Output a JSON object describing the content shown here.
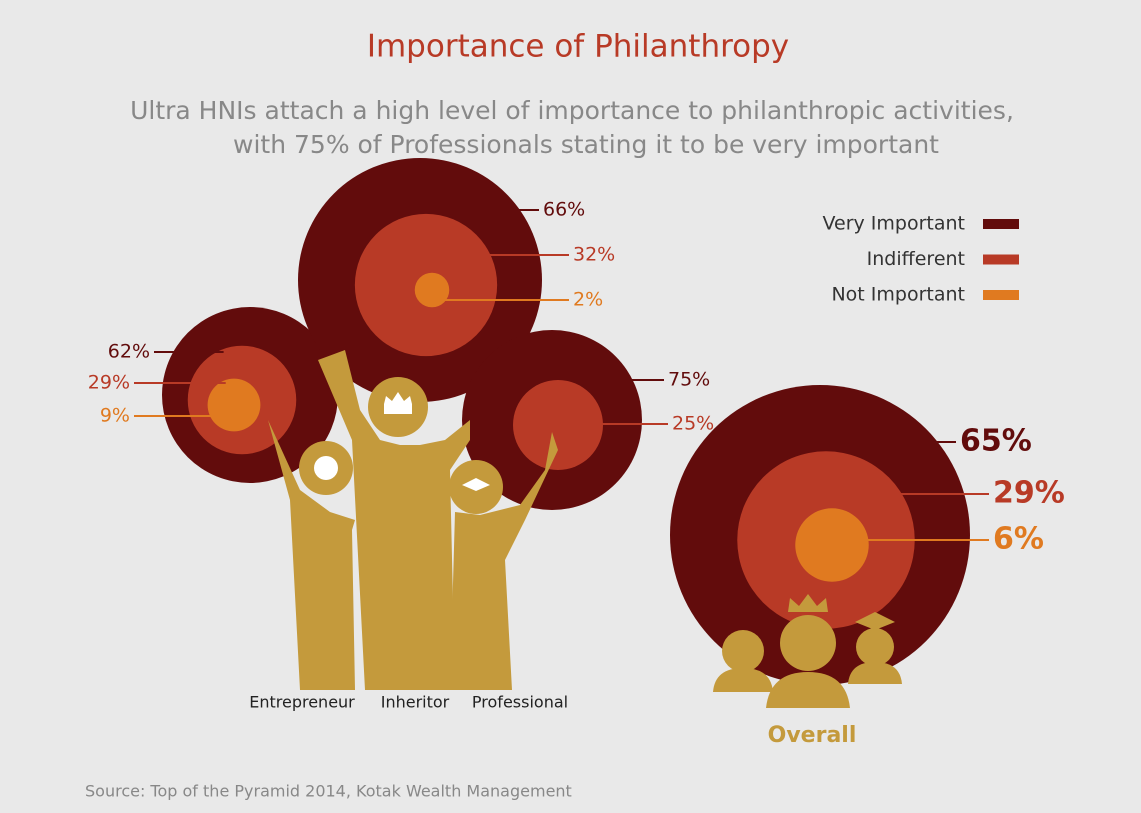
{
  "chart_data": {
    "type": "nested-blobs",
    "title": "Importance of Philanthropy",
    "subtitle": [
      "Ultra HNIs attach a high level of importance to philanthropic activities,",
      "with 75% of Professionals stating it to be very important"
    ],
    "categories": [
      "Entrepreneur",
      "Inheritor",
      "Professional",
      "Overall"
    ],
    "series": [
      {
        "name": "Very Important",
        "color": "#620c0c",
        "values": [
          62,
          66,
          75,
          65
        ],
        "value_labels": [
          "62%",
          "66%",
          "75%",
          "65%"
        ]
      },
      {
        "name": "Indifferent",
        "color": "#b83a26",
        "values": [
          29,
          32,
          25,
          29
        ],
        "value_labels": [
          "29%",
          "32%",
          "25%",
          "29%"
        ]
      },
      {
        "name": "Not Important",
        "color": "#e07a20",
        "values": [
          9,
          2,
          null,
          6
        ],
        "value_labels": [
          "9%",
          "2%",
          null,
          "6%"
        ]
      }
    ],
    "source": "Source: Top of the Pyramid 2014, Kotak Wealth Management"
  }
}
